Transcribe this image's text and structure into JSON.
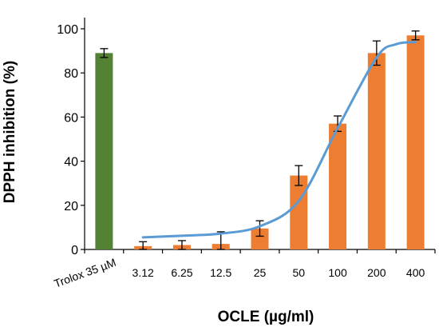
{
  "chart_data": {
    "type": "bar",
    "title": "",
    "xlabel": "OCLE (µg/ml)",
    "ylabel": "DPPH inhibition (%)",
    "ylim": [
      0,
      100
    ],
    "yticks": [
      0,
      20,
      40,
      60,
      80,
      100
    ],
    "grid": false,
    "legend": "none",
    "categories": [
      "Trolox 35 µM",
      "3.12",
      "6.25",
      "12.5",
      "25",
      "50",
      "100",
      "200",
      "400"
    ],
    "series": [
      {
        "values": [
          89,
          1.5,
          2,
          2.5,
          9.5,
          33.5,
          57,
          89,
          97
        ],
        "errors": [
          2,
          2,
          2,
          5.5,
          3.5,
          4.5,
          3.5,
          5.5,
          2
        ],
        "colors": [
          "#548235",
          "#ED7D31",
          "#ED7D31",
          "#ED7D31",
          "#ED7D31",
          "#ED7D31",
          "#ED7D31",
          "#ED7D31",
          "#ED7D31"
        ]
      }
    ],
    "trend_line": {
      "color": "#5B9BD5",
      "start_category": 1,
      "points": [
        [
          1,
          5.5
        ],
        [
          2,
          6.2
        ],
        [
          3,
          7.2
        ],
        [
          4,
          10.5
        ],
        [
          5,
          22
        ],
        [
          6,
          55
        ],
        [
          7,
          87
        ],
        [
          7.5,
          93
        ],
        [
          8,
          94
        ]
      ]
    }
  }
}
